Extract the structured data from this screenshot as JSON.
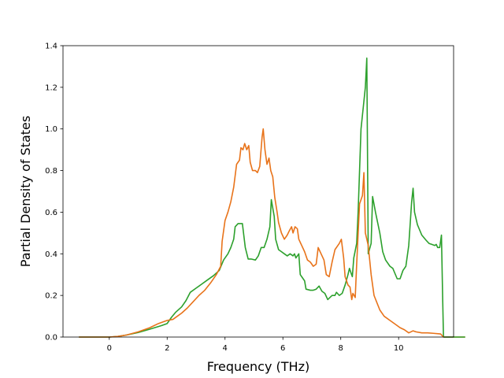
{
  "chart_data": {
    "type": "line",
    "title": "",
    "xlabel": "Frequency (THz)",
    "ylabel": "Partial Density of States",
    "xlim": [
      -1.6,
      11.9
    ],
    "ylim": [
      0,
      1.4
    ],
    "xticks": [
      0,
      2,
      4,
      6,
      8,
      10
    ],
    "yticks": [
      0.0,
      0.2,
      0.4,
      0.6,
      0.8,
      1.0,
      1.2,
      1.4
    ],
    "xtick_labels": [
      "0",
      "2",
      "4",
      "6",
      "8",
      "10"
    ],
    "ytick_labels": [
      "0.0",
      "0.2",
      "0.4",
      "0.6",
      "0.8",
      "1.0",
      "1.2",
      "1.4"
    ],
    "grid": false,
    "legend": "none",
    "series": [
      {
        "color": "#2ca02c",
        "points": [
          [
            -1.05,
            0
          ],
          [
            -0.5,
            0
          ],
          [
            0,
            0
          ],
          [
            0.3,
            0.003
          ],
          [
            0.6,
            0.01
          ],
          [
            1.0,
            0.022
          ],
          [
            1.4,
            0.038
          ],
          [
            1.8,
            0.055
          ],
          [
            2.0,
            0.065
          ],
          [
            2.15,
            0.095
          ],
          [
            2.3,
            0.12
          ],
          [
            2.5,
            0.145
          ],
          [
            2.65,
            0.175
          ],
          [
            2.8,
            0.215
          ],
          [
            3.0,
            0.235
          ],
          [
            3.2,
            0.255
          ],
          [
            3.4,
            0.275
          ],
          [
            3.6,
            0.295
          ],
          [
            3.8,
            0.32
          ],
          [
            3.95,
            0.37
          ],
          [
            4.1,
            0.4
          ],
          [
            4.2,
            0.43
          ],
          [
            4.3,
            0.47
          ],
          [
            4.35,
            0.53
          ],
          [
            4.45,
            0.545
          ],
          [
            4.6,
            0.545
          ],
          [
            4.7,
            0.43
          ],
          [
            4.8,
            0.375
          ],
          [
            4.9,
            0.375
          ],
          [
            5.05,
            0.37
          ],
          [
            5.15,
            0.39
          ],
          [
            5.25,
            0.43
          ],
          [
            5.35,
            0.43
          ],
          [
            5.45,
            0.47
          ],
          [
            5.55,
            0.53
          ],
          [
            5.6,
            0.66
          ],
          [
            5.7,
            0.58
          ],
          [
            5.75,
            0.47
          ],
          [
            5.85,
            0.42
          ],
          [
            5.95,
            0.41
          ],
          [
            6.05,
            0.4
          ],
          [
            6.15,
            0.39
          ],
          [
            6.25,
            0.4
          ],
          [
            6.35,
            0.39
          ],
          [
            6.4,
            0.4
          ],
          [
            6.45,
            0.38
          ],
          [
            6.55,
            0.4
          ],
          [
            6.6,
            0.3
          ],
          [
            6.75,
            0.27
          ],
          [
            6.8,
            0.23
          ],
          [
            6.95,
            0.225
          ],
          [
            7.05,
            0.225
          ],
          [
            7.15,
            0.23
          ],
          [
            7.25,
            0.245
          ],
          [
            7.35,
            0.22
          ],
          [
            7.45,
            0.21
          ],
          [
            7.55,
            0.18
          ],
          [
            7.7,
            0.2
          ],
          [
            7.8,
            0.2
          ],
          [
            7.85,
            0.215
          ],
          [
            7.95,
            0.2
          ],
          [
            8.05,
            0.21
          ],
          [
            8.15,
            0.25
          ],
          [
            8.25,
            0.3
          ],
          [
            8.3,
            0.33
          ],
          [
            8.4,
            0.29
          ],
          [
            8.45,
            0.38
          ],
          [
            8.55,
            0.45
          ],
          [
            8.6,
            0.6
          ],
          [
            8.7,
            1.0
          ],
          [
            8.85,
            1.2
          ],
          [
            8.9,
            1.34
          ],
          [
            8.95,
            0.4
          ],
          [
            9.05,
            0.45
          ],
          [
            9.1,
            0.675
          ],
          [
            9.2,
            0.6
          ],
          [
            9.35,
            0.5
          ],
          [
            9.45,
            0.41
          ],
          [
            9.55,
            0.37
          ],
          [
            9.7,
            0.34
          ],
          [
            9.8,
            0.33
          ],
          [
            9.95,
            0.28
          ],
          [
            10.05,
            0.28
          ],
          [
            10.15,
            0.32
          ],
          [
            10.25,
            0.34
          ],
          [
            10.35,
            0.44
          ],
          [
            10.45,
            0.65
          ],
          [
            10.5,
            0.715
          ],
          [
            10.55,
            0.6
          ],
          [
            10.65,
            0.54
          ],
          [
            10.8,
            0.49
          ],
          [
            10.95,
            0.465
          ],
          [
            11.05,
            0.45
          ],
          [
            11.15,
            0.445
          ],
          [
            11.25,
            0.44
          ],
          [
            11.3,
            0.445
          ],
          [
            11.35,
            0.43
          ],
          [
            11.42,
            0.43
          ],
          [
            11.48,
            0.49
          ],
          [
            11.52,
            0.2
          ],
          [
            11.55,
            0
          ]
        ]
      },
      {
        "color": "#e8731a",
        "points": [
          [
            -1.05,
            0
          ],
          [
            -0.5,
            0
          ],
          [
            0,
            0
          ],
          [
            0.3,
            0.003
          ],
          [
            0.6,
            0.01
          ],
          [
            1.0,
            0.025
          ],
          [
            1.4,
            0.045
          ],
          [
            1.7,
            0.065
          ],
          [
            2.0,
            0.08
          ],
          [
            2.2,
            0.085
          ],
          [
            2.35,
            0.1
          ],
          [
            2.5,
            0.115
          ],
          [
            2.7,
            0.14
          ],
          [
            2.9,
            0.17
          ],
          [
            3.1,
            0.2
          ],
          [
            3.3,
            0.225
          ],
          [
            3.5,
            0.26
          ],
          [
            3.7,
            0.3
          ],
          [
            3.85,
            0.34
          ],
          [
            3.9,
            0.46
          ],
          [
            4.0,
            0.56
          ],
          [
            4.1,
            0.6
          ],
          [
            4.2,
            0.65
          ],
          [
            4.3,
            0.72
          ],
          [
            4.4,
            0.83
          ],
          [
            4.5,
            0.85
          ],
          [
            4.55,
            0.91
          ],
          [
            4.62,
            0.9
          ],
          [
            4.68,
            0.93
          ],
          [
            4.75,
            0.9
          ],
          [
            4.82,
            0.92
          ],
          [
            4.87,
            0.84
          ],
          [
            4.95,
            0.8
          ],
          [
            5.05,
            0.8
          ],
          [
            5.12,
            0.79
          ],
          [
            5.2,
            0.82
          ],
          [
            5.28,
            0.96
          ],
          [
            5.32,
            1.0
          ],
          [
            5.38,
            0.9
          ],
          [
            5.45,
            0.83
          ],
          [
            5.52,
            0.86
          ],
          [
            5.58,
            0.8
          ],
          [
            5.65,
            0.77
          ],
          [
            5.72,
            0.67
          ],
          [
            5.8,
            0.6
          ],
          [
            5.85,
            0.55
          ],
          [
            5.95,
            0.5
          ],
          [
            6.05,
            0.47
          ],
          [
            6.15,
            0.49
          ],
          [
            6.22,
            0.51
          ],
          [
            6.3,
            0.53
          ],
          [
            6.35,
            0.5
          ],
          [
            6.42,
            0.53
          ],
          [
            6.5,
            0.52
          ],
          [
            6.55,
            0.47
          ],
          [
            6.65,
            0.44
          ],
          [
            6.75,
            0.41
          ],
          [
            6.85,
            0.37
          ],
          [
            6.95,
            0.36
          ],
          [
            7.05,
            0.34
          ],
          [
            7.15,
            0.35
          ],
          [
            7.22,
            0.43
          ],
          [
            7.32,
            0.4
          ],
          [
            7.42,
            0.37
          ],
          [
            7.5,
            0.3
          ],
          [
            7.6,
            0.29
          ],
          [
            7.7,
            0.36
          ],
          [
            7.8,
            0.42
          ],
          [
            7.95,
            0.45
          ],
          [
            8.02,
            0.47
          ],
          [
            8.1,
            0.38
          ],
          [
            8.15,
            0.29
          ],
          [
            8.25,
            0.25
          ],
          [
            8.32,
            0.24
          ],
          [
            8.38,
            0.18
          ],
          [
            8.42,
            0.21
          ],
          [
            8.5,
            0.19
          ],
          [
            8.55,
            0.35
          ],
          [
            8.65,
            0.64
          ],
          [
            8.75,
            0.68
          ],
          [
            8.8,
            0.79
          ],
          [
            8.85,
            0.5
          ],
          [
            8.95,
            0.44
          ],
          [
            9.05,
            0.3
          ],
          [
            9.15,
            0.2
          ],
          [
            9.35,
            0.13
          ],
          [
            9.5,
            0.1
          ],
          [
            9.7,
            0.08
          ],
          [
            9.9,
            0.06
          ],
          [
            10.05,
            0.045
          ],
          [
            10.2,
            0.035
          ],
          [
            10.35,
            0.02
          ],
          [
            10.5,
            0.03
          ],
          [
            10.6,
            0.025
          ],
          [
            10.8,
            0.02
          ],
          [
            11.0,
            0.02
          ],
          [
            11.2,
            0.018
          ],
          [
            11.45,
            0.015
          ],
          [
            11.55,
            0
          ],
          [
            12.3,
            0
          ]
        ]
      },
      {
        "color": "#2ca02c",
        "points": [
          [
            11.55,
            0
          ],
          [
            12.3,
            0
          ]
        ]
      }
    ]
  }
}
